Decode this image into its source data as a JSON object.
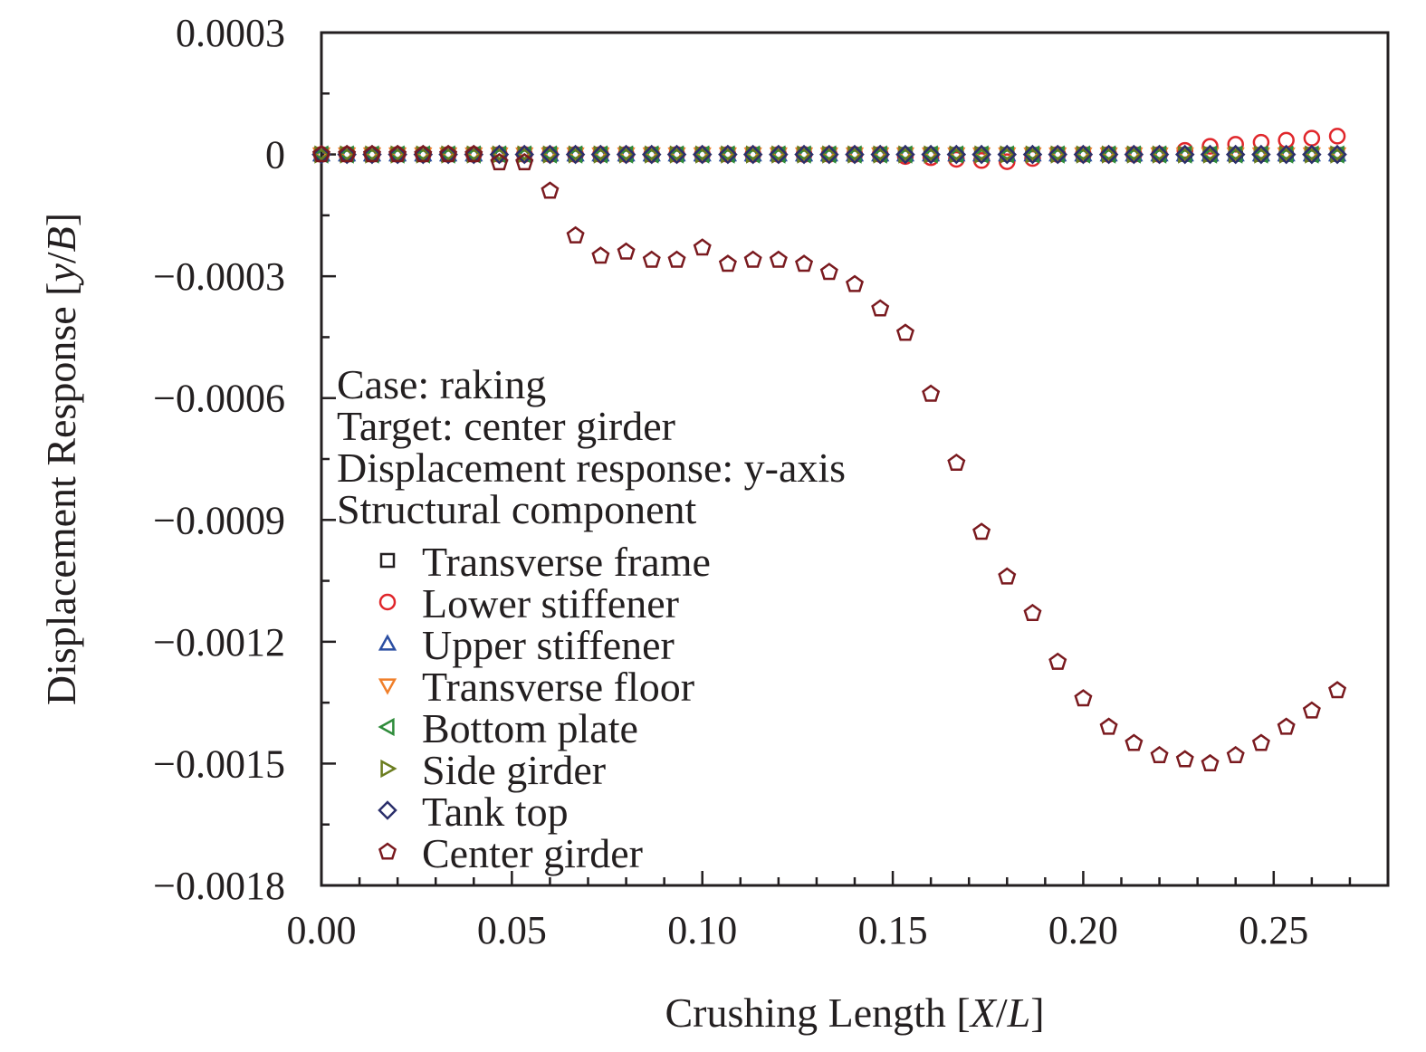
{
  "chart_data": {
    "type": "scatter",
    "xlabel_parts": [
      "Crushing Length [",
      "X",
      "/",
      "L",
      "]"
    ],
    "ylabel_parts": [
      "Displacement Response [",
      "y",
      "/",
      "B",
      "]"
    ],
    "xlim": [
      0,
      0.28
    ],
    "ylim": [
      -0.0018,
      0.0003
    ],
    "x_ticks": [
      0.0,
      0.05,
      0.1,
      0.15,
      0.2,
      0.25
    ],
    "x_tick_labels": [
      "0.00",
      "0.05",
      "0.10",
      "0.15",
      "0.20",
      "0.25"
    ],
    "y_ticks": [
      0.0003,
      0,
      -0.0003,
      -0.0006,
      -0.0009,
      -0.0012,
      -0.0015,
      -0.0018
    ],
    "y_tick_labels": [
      "0.0003",
      "0",
      "−0.0003",
      "−0.0006",
      "−0.0009",
      "−0.0012",
      "−0.0015",
      "−0.0018"
    ],
    "grid": false,
    "annotations": [
      "Case: raking",
      "Target: center girder",
      "Displacement response: y-axis",
      "Structural component"
    ],
    "legend_position": "bottom-left",
    "x": [
      0.0,
      0.0067,
      0.0133,
      0.02,
      0.0267,
      0.0333,
      0.04,
      0.0467,
      0.0533,
      0.06,
      0.0667,
      0.0733,
      0.08,
      0.0867,
      0.0933,
      0.1,
      0.1067,
      0.1133,
      0.12,
      0.1267,
      0.1333,
      0.14,
      0.1467,
      0.1533,
      0.16,
      0.1667,
      0.1733,
      0.18,
      0.1867,
      0.1933,
      0.2,
      0.2067,
      0.2133,
      0.22,
      0.2267,
      0.2333,
      0.24,
      0.2467,
      0.2533,
      0.26,
      0.2667
    ],
    "series": [
      {
        "name": "Transverse frame",
        "marker": "square",
        "color": "#231f20",
        "values": [
          0,
          0,
          0,
          0,
          0,
          0,
          0,
          0,
          0,
          0,
          0,
          0,
          0,
          0,
          0,
          0,
          0,
          0,
          0,
          0,
          0,
          0,
          0,
          0,
          0,
          0,
          0,
          0,
          0,
          0,
          0,
          0,
          0,
          0,
          0,
          0,
          0,
          0,
          0,
          0,
          0
        ]
      },
      {
        "name": "Lower stiffener",
        "marker": "circle",
        "color": "#e0262b",
        "values": [
          0,
          0,
          0,
          0,
          0,
          0,
          0,
          0,
          0,
          0,
          0,
          0,
          0,
          0,
          0,
          0,
          0,
          0,
          0,
          0,
          0,
          0,
          0,
          -5e-06,
          -8e-06,
          -1.2e-05,
          -1.5e-05,
          -1.8e-05,
          -1e-05,
          0,
          0,
          0,
          0,
          0,
          1e-05,
          2e-05,
          2.5e-05,
          3e-05,
          3.5e-05,
          4e-05,
          4.5e-05
        ]
      },
      {
        "name": "Upper stiffener",
        "marker": "triangle-up",
        "color": "#2b4ea2",
        "values": [
          0,
          0,
          0,
          0,
          0,
          0,
          0,
          0,
          0,
          0,
          0,
          0,
          0,
          0,
          0,
          0,
          0,
          0,
          0,
          0,
          0,
          0,
          0,
          0,
          0,
          0,
          0,
          0,
          0,
          0,
          0,
          0,
          0,
          0,
          0,
          0,
          0,
          0,
          0,
          0,
          0
        ]
      },
      {
        "name": "Transverse floor",
        "marker": "triangle-down",
        "color": "#f07f2a",
        "values": [
          0,
          0,
          0,
          0,
          0,
          0,
          0,
          0,
          0,
          0,
          0,
          0,
          0,
          0,
          0,
          0,
          0,
          0,
          0,
          0,
          0,
          0,
          0,
          0,
          0,
          0,
          0,
          0,
          0,
          0,
          0,
          0,
          0,
          0,
          0,
          0,
          0,
          0,
          0,
          0,
          0
        ]
      },
      {
        "name": "Bottom plate",
        "marker": "triangle-left",
        "color": "#2e8b3a",
        "values": [
          0,
          0,
          0,
          0,
          0,
          0,
          0,
          0,
          0,
          0,
          0,
          0,
          0,
          0,
          0,
          0,
          0,
          0,
          0,
          0,
          0,
          0,
          0,
          0,
          0,
          0,
          0,
          0,
          0,
          0,
          0,
          0,
          0,
          0,
          0,
          0,
          0,
          0,
          0,
          0,
          0
        ]
      },
      {
        "name": "Side girder",
        "marker": "triangle-right",
        "color": "#6b7d1f",
        "values": [
          0,
          0,
          0,
          0,
          0,
          0,
          0,
          0,
          0,
          0,
          0,
          0,
          0,
          0,
          0,
          0,
          0,
          0,
          0,
          0,
          0,
          0,
          0,
          0,
          0,
          0,
          0,
          0,
          0,
          0,
          0,
          0,
          0,
          0,
          0,
          0,
          0,
          0,
          0,
          0,
          0
        ]
      },
      {
        "name": "Tank top",
        "marker": "diamond",
        "color": "#2b2f6b",
        "values": [
          0,
          0,
          0,
          0,
          0,
          0,
          0,
          0,
          0,
          0,
          0,
          0,
          0,
          0,
          0,
          0,
          0,
          0,
          0,
          0,
          0,
          0,
          0,
          0,
          0,
          0,
          0,
          0,
          0,
          0,
          0,
          0,
          0,
          0,
          0,
          0,
          0,
          0,
          0,
          0,
          0
        ]
      },
      {
        "name": "Center girder",
        "marker": "pentagon",
        "color": "#7a1a1f",
        "values": [
          0,
          0,
          0,
          0,
          0,
          0,
          0,
          -2e-05,
          -2e-05,
          -9e-05,
          -0.0002,
          -0.00025,
          -0.00024,
          -0.00026,
          -0.00026,
          -0.00023,
          -0.00027,
          -0.00026,
          -0.00026,
          -0.00027,
          -0.00029,
          -0.00032,
          -0.00038,
          -0.00044,
          -0.00059,
          -0.00076,
          -0.00093,
          -0.00104,
          -0.00113,
          -0.00125,
          -0.00134,
          -0.00141,
          -0.00145,
          -0.00148,
          -0.00149,
          -0.0015,
          -0.00148,
          -0.00145,
          -0.00141,
          -0.00137,
          -0.00132
        ]
      }
    ]
  }
}
